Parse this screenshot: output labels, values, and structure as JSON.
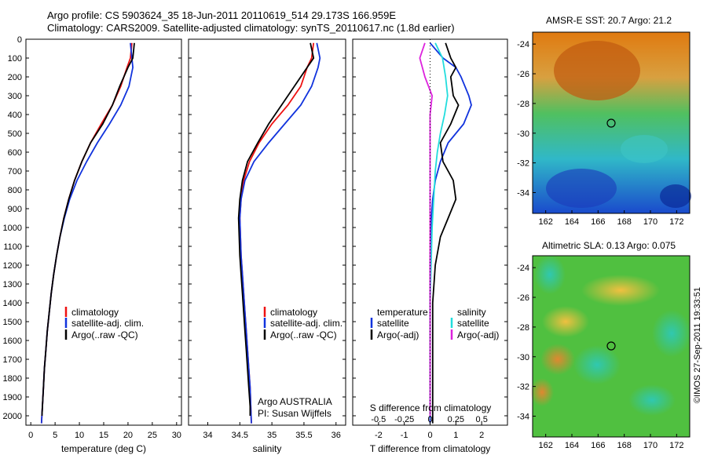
{
  "header": {
    "line1": "Argo profile: CS 5903624_35 18-Jun-2011 20110619_514 29.173S 166.959E",
    "line2": "Climatology: CARS2009. Satellite-adjusted climatology: synTS_20110617.nc (1.8d earlier)"
  },
  "colors": {
    "climatology": "#ee1111",
    "satellite": "#1133dd",
    "argo": "#000000",
    "salinity_satellite": "#22dddd",
    "salinity_argo": "#dd22dd"
  },
  "depth_ticks": [
    0,
    100,
    200,
    300,
    400,
    500,
    600,
    700,
    800,
    900,
    1000,
    1100,
    1200,
    1300,
    1400,
    1500,
    1600,
    1700,
    1800,
    1900,
    2000
  ],
  "panels": {
    "temperature": {
      "xlabel": "temperature (deg C)",
      "xticks": [
        "0",
        "5",
        "10",
        "15",
        "20",
        "25",
        "30"
      ],
      "legend": [
        "climatology",
        "satellite-adj. clim.",
        "Argo(..raw -QC)"
      ]
    },
    "salinity": {
      "xlabel": "salinity",
      "xticks": [
        "34",
        "34.5",
        "35",
        "35.5",
        "36"
      ],
      "legend": [
        "climatology",
        "satellite-adj. clim.",
        "Argo(..raw -QC)"
      ],
      "note1": "Argo AUSTRALIA",
      "note2": "PI: Susan Wijffels"
    },
    "difference": {
      "xlabel": "T difference from climatology",
      "top_label": "S difference from climatology",
      "t_ticks": [
        "-2",
        "-1",
        "0",
        "1",
        "2"
      ],
      "s_ticks": [
        "-0.5",
        "-0.25",
        "0",
        "0.25",
        "0.5"
      ],
      "legend_t_title": "temperature",
      "legend_s_title": "salinity",
      "legend_t": [
        "satellite",
        "Argo(-adj)"
      ],
      "legend_s": [
        "satellite",
        "Argo(-adj)"
      ]
    }
  },
  "maps": {
    "sst_title": "AMSR-E SST: 20.7 Argo: 21.2",
    "sla_title": "Altimetric SLA: 0.13 Argo: 0.075",
    "lon_ticks": [
      "162",
      "164",
      "166",
      "168",
      "170",
      "172"
    ],
    "lat_ticks": [
      "-24",
      "-26",
      "-28",
      "-30",
      "-32",
      "-34"
    ],
    "stamp": "©IMOS 27-Sep-2011 19:33:51"
  },
  "chart_data": [
    {
      "type": "line",
      "title": "",
      "xlabel": "temperature (deg C)",
      "ylabel": "",
      "xlim": [
        -1,
        31
      ],
      "ylim": [
        2050,
        0
      ],
      "series": [
        {
          "name": "climatology",
          "x": [
            20.8,
            20.5,
            19.8,
            18.5,
            16.8,
            14.5,
            12.3,
            10.5,
            9.0,
            7.8,
            6.8,
            6.0,
            5.3,
            4.7,
            4.2,
            3.8,
            3.4,
            3.1,
            2.8,
            2.6,
            2.4,
            2.2
          ],
          "y": [
            20,
            100,
            150,
            250,
            350,
            450,
            550,
            650,
            750,
            850,
            950,
            1050,
            1150,
            1250,
            1350,
            1450,
            1550,
            1650,
            1750,
            1850,
            1950,
            2040
          ]
        },
        {
          "name": "satellite-adj. clim.",
          "x": [
            20.5,
            20.8,
            21.0,
            20.2,
            18.5,
            16.2,
            13.7,
            11.5,
            9.5,
            8.0,
            6.9,
            6.0,
            5.3,
            4.7,
            4.2,
            3.8,
            3.4,
            3.1,
            2.8,
            2.6,
            2.4,
            2.2
          ],
          "y": [
            20,
            100,
            150,
            250,
            350,
            450,
            550,
            650,
            750,
            850,
            950,
            1050,
            1150,
            1250,
            1350,
            1450,
            1550,
            1650,
            1750,
            1850,
            1950,
            2040
          ]
        },
        {
          "name": "Argo(..raw -QC)",
          "x": [
            21.3,
            21.0,
            20.0,
            18.3,
            16.8,
            14.8,
            12.3,
            10.5,
            9.0,
            7.8,
            6.8,
            6.0,
            5.3,
            4.7,
            4.2,
            3.8,
            3.4,
            3.1,
            2.8,
            2.6,
            2.4,
            2.3
          ],
          "y": [
            20,
            100,
            150,
            250,
            350,
            450,
            550,
            650,
            750,
            850,
            950,
            1050,
            1150,
            1250,
            1350,
            1450,
            1550,
            1650,
            1750,
            1850,
            1950,
            2000
          ]
        }
      ]
    },
    {
      "type": "line",
      "title": "",
      "xlabel": "salinity",
      "ylabel": "",
      "xlim": [
        33.7,
        36.15
      ],
      "ylim": [
        2050,
        0
      ],
      "series": [
        {
          "name": "climatology",
          "x": [
            35.65,
            35.62,
            35.55,
            35.45,
            35.25,
            35.0,
            34.8,
            34.65,
            34.56,
            34.52,
            34.5,
            34.51,
            34.52,
            34.54,
            34.56,
            34.58,
            34.6,
            34.62,
            34.64,
            34.66,
            34.67,
            34.68
          ],
          "y": [
            20,
            100,
            150,
            250,
            350,
            450,
            550,
            650,
            750,
            850,
            950,
            1050,
            1150,
            1250,
            1350,
            1450,
            1550,
            1650,
            1750,
            1850,
            1950,
            2040
          ]
        },
        {
          "name": "satellite-adj. clim.",
          "x": [
            35.7,
            35.75,
            35.72,
            35.62,
            35.45,
            35.2,
            34.95,
            34.72,
            34.58,
            34.52,
            34.5,
            34.51,
            34.52,
            34.54,
            34.56,
            34.58,
            34.6,
            34.62,
            34.64,
            34.66,
            34.67,
            34.68
          ],
          "y": [
            20,
            100,
            150,
            250,
            350,
            450,
            550,
            650,
            750,
            850,
            950,
            1050,
            1150,
            1250,
            1350,
            1450,
            1550,
            1650,
            1750,
            1850,
            1950,
            2040
          ]
        },
        {
          "name": "Argo(..raw -QC)",
          "x": [
            35.6,
            35.65,
            35.55,
            35.35,
            35.15,
            34.95,
            34.78,
            34.62,
            34.54,
            34.5,
            34.48,
            34.49,
            34.5,
            34.52,
            34.54,
            34.56,
            34.58,
            34.6,
            34.62,
            34.64,
            34.66,
            34.66
          ],
          "y": [
            20,
            100,
            150,
            250,
            350,
            450,
            550,
            650,
            750,
            850,
            950,
            1050,
            1150,
            1250,
            1350,
            1450,
            1550,
            1650,
            1750,
            1850,
            1950,
            2000
          ]
        }
      ]
    },
    {
      "type": "line",
      "title": "",
      "xlabel": "T difference from climatology",
      "ylabel": "",
      "xlim": [
        -3,
        3
      ],
      "ylim": [
        2050,
        0
      ],
      "series": [
        {
          "name": "satellite",
          "x": [
            0.0,
            0.5,
            1.0,
            1.2,
            1.5,
            1.6,
            1.3,
            0.7,
            0.4,
            0.2,
            0.1,
            0.05,
            0.02,
            0.0,
            0.0,
            0.0,
            0.0,
            0.0,
            0.0,
            0.0
          ],
          "y": [
            20,
            100,
            150,
            200,
            300,
            350,
            450,
            550,
            650,
            750,
            850,
            950,
            1050,
            1200,
            1400,
            1600,
            1800,
            1900,
            2000,
            2040
          ]
        },
        {
          "name": "Argo(-adj)",
          "x": [
            0.6,
            0.8,
            1.0,
            0.8,
            0.9,
            1.1,
            0.8,
            0.4,
            0.5,
            0.9,
            1.0,
            0.7,
            0.4,
            0.2,
            0.1,
            0.1,
            0.1,
            0.1,
            0.1,
            0.1
          ],
          "y": [
            20,
            100,
            150,
            200,
            300,
            350,
            450,
            550,
            650,
            750,
            850,
            950,
            1050,
            1200,
            1400,
            1600,
            1800,
            1900,
            2000,
            2040
          ]
        }
      ]
    },
    {
      "type": "line",
      "title": "",
      "xlabel": "S difference from climatology",
      "ylabel": "",
      "xlim": [
        -0.75,
        0.75
      ],
      "ylim": [
        2050,
        0
      ],
      "series": [
        {
          "name": "satellite",
          "x": [
            0.05,
            0.12,
            0.15,
            0.17,
            0.14,
            0.1,
            0.07,
            0.05,
            0.04,
            0.03,
            0.02,
            0.01,
            0.0,
            0.0,
            0.0,
            0.0
          ],
          "y": [
            20,
            100,
            200,
            300,
            400,
            500,
            600,
            700,
            800,
            900,
            1000,
            1200,
            1400,
            1600,
            1800,
            2000
          ]
        },
        {
          "name": "Argo(-adj)",
          "x": [
            -0.05,
            -0.1,
            -0.05,
            0.02,
            0.0,
            0.0,
            0.0,
            0.0,
            0.0,
            0.0,
            0.0,
            0.0,
            0.0,
            0.0,
            0.0,
            0.0
          ],
          "y": [
            20,
            100,
            200,
            300,
            400,
            500,
            600,
            700,
            800,
            900,
            1000,
            1200,
            1400,
            1600,
            1800,
            2000
          ]
        }
      ]
    }
  ]
}
